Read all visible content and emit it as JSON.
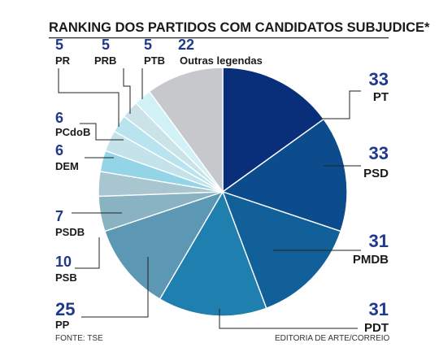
{
  "chart_data": {
    "type": "pie",
    "title": "RANKING DOS PARTIDOS COM CANDIDATOS SUBJUDICE*",
    "categories": [
      "PT",
      "PSD",
      "PMDB",
      "PDT",
      "PP",
      "PSB",
      "PSDB",
      "DEM",
      "PCdoB",
      "PR",
      "PRB",
      "PTB",
      "Outras legendas"
    ],
    "values": [
      33,
      33,
      31,
      31,
      25,
      10,
      7,
      6,
      6,
      5,
      5,
      5,
      22
    ],
    "colors": [
      "#0a2f7a",
      "#0d4c8c",
      "#11609a",
      "#1f7fae",
      "#5c97b3",
      "#89b2c3",
      "#a9c6d0",
      "#93d4e6",
      "#c3e2ea",
      "#b9e4ef",
      "#c9e3e9",
      "#d2f1f7",
      "#c6c8cb"
    ],
    "source": "FONTE: TSE",
    "credit": "EDITORIA DE ARTE/CORREIO"
  }
}
